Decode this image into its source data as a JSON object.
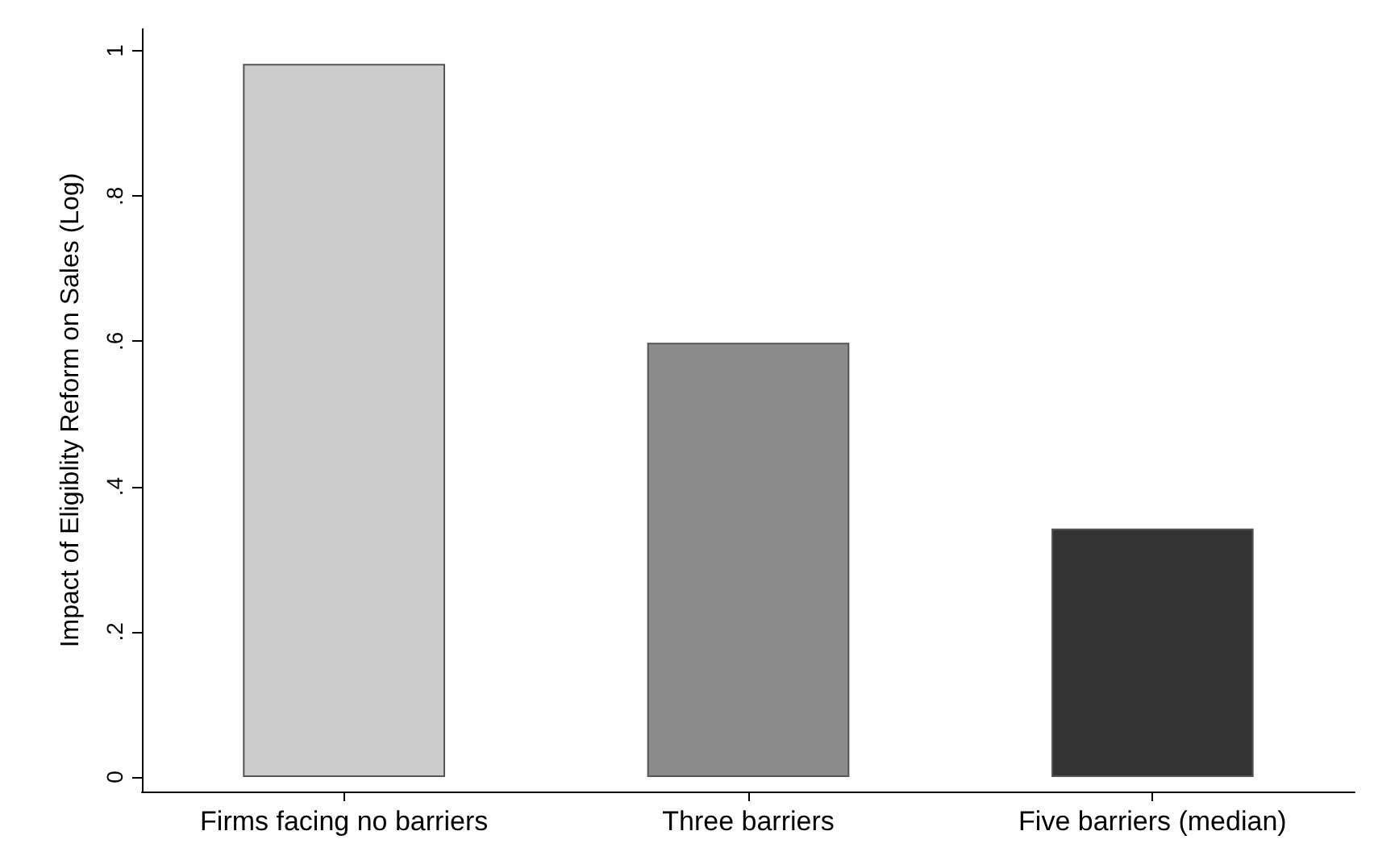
{
  "chart_data": {
    "type": "bar",
    "ylabel": "Impact of Eligiblity Reform on Sales (Log)",
    "categories": [
      "Firms facing no barriers",
      "Three barriers",
      "Five barriers (median)"
    ],
    "values": [
      0.982,
      0.598,
      0.342
    ],
    "colors": [
      "#cccccc",
      "#8c8c8c",
      "#333333"
    ],
    "ylim": [
      -0.02,
      1.03
    ],
    "yticks": [
      0,
      {
        "value": 0.2,
        "label": ".2"
      },
      {
        "value": 0.4,
        "label": ".4"
      },
      {
        "value": 0.6,
        "label": ".6"
      },
      {
        "value": 0.8,
        "label": ".8"
      },
      1
    ],
    "grid": false
  }
}
